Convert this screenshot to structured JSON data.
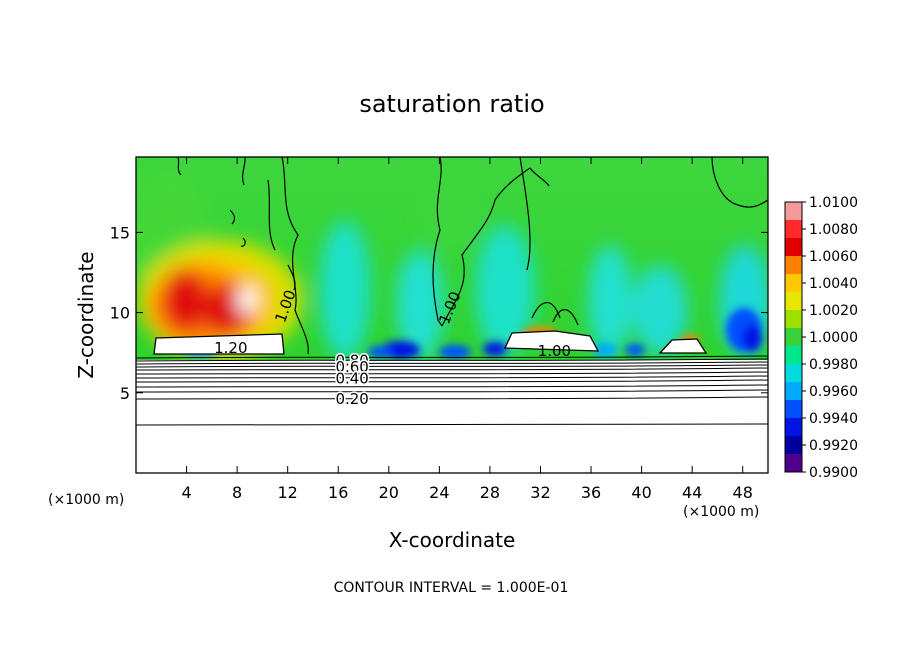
{
  "chart_data": {
    "type": "heatmap",
    "title": "saturation ratio",
    "xlabel": "X-coordinate",
    "ylabel": "Z-coordinate",
    "x_unit_left": "(×1000 m)",
    "x_unit_right": "(×1000 m)",
    "xlim": [
      0,
      50
    ],
    "ylim": [
      0,
      19.7
    ],
    "x_ticks": [
      4,
      8,
      12,
      16,
      20,
      24,
      28,
      32,
      36,
      40,
      44,
      48
    ],
    "y_ticks": [
      5,
      10,
      15
    ],
    "contour_labels": [
      {
        "text": "1.20",
        "x": 7.5,
        "y": 7.8
      },
      {
        "text": "1.00",
        "x": 12.2,
        "y": 10.6
      },
      {
        "text": "1.00",
        "x": 25.2,
        "y": 10.5
      },
      {
        "text": "1.00",
        "x": 33.1,
        "y": 7.6
      },
      {
        "text": "0.80",
        "x": 17.1,
        "y": 7.0
      },
      {
        "text": "0.60",
        "x": 17.1,
        "y": 6.6
      },
      {
        "text": "0.40",
        "x": 17.1,
        "y": 5.9
      },
      {
        "text": "0.20",
        "x": 17.1,
        "y": 4.6
      }
    ],
    "contour_interval_text": "CONTOUR INTERVAL = 1.000E-01",
    "colorbar": {
      "labels": [
        "1.0100",
        "1.0080",
        "1.0060",
        "1.0040",
        "1.0020",
        "1.0000",
        "0.9980",
        "0.9960",
        "0.9940",
        "0.9920",
        "0.9900"
      ],
      "colors": [
        "#f39a9a",
        "#ff2a2a",
        "#e00000",
        "#ff8000",
        "#ffc800",
        "#e6e600",
        "#a0e000",
        "#3ad23a",
        "#00e68c",
        "#00dcdc",
        "#00aaff",
        "#0050ff",
        "#0014e6",
        "#0000a0",
        "#50008c"
      ]
    }
  }
}
